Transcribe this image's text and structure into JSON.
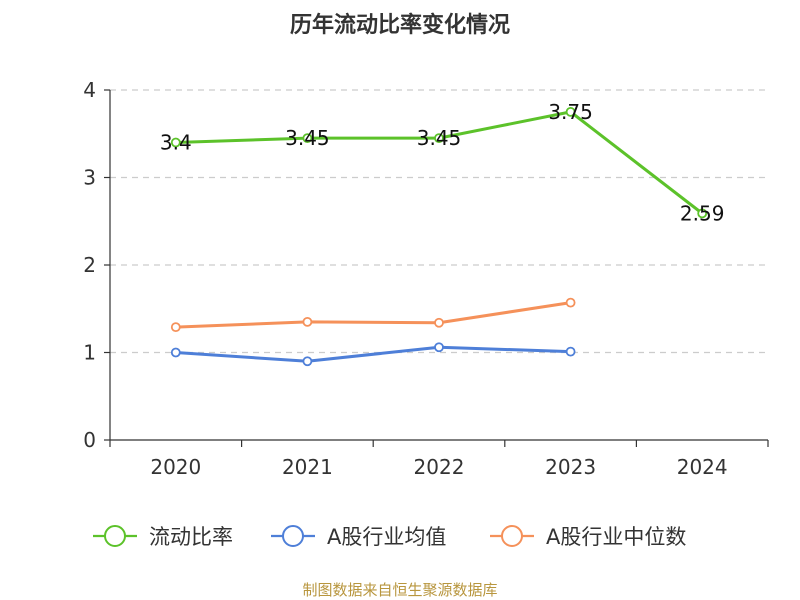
{
  "chart_data": {
    "type": "line",
    "title": "历年流动比率变化情况",
    "categories": [
      "2020",
      "2021",
      "2022",
      "2023",
      "2024"
    ],
    "ylim": [
      0,
      4
    ],
    "yticks": [
      "0",
      "1",
      "2",
      "3",
      "4"
    ],
    "grid": true,
    "legend_position": "bottom",
    "series": [
      {
        "name": "流动比率",
        "color": "#5cc22a",
        "values": [
          3.4,
          3.45,
          3.45,
          3.75,
          2.59
        ],
        "labels": [
          "3.4",
          "3.45",
          "3.45",
          "3.75",
          "2.59"
        ]
      },
      {
        "name": "A股行业均值",
        "color": "#4e7fd8",
        "values": [
          1.0,
          0.9,
          1.06,
          1.01,
          null
        ]
      },
      {
        "name": "A股行业中位数",
        "color": "#f5915a",
        "values": [
          1.29,
          1.35,
          1.34,
          1.57,
          null
        ]
      }
    ]
  },
  "source": "制图数据来自恒生聚源数据库"
}
